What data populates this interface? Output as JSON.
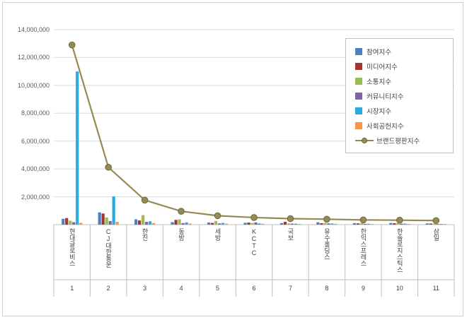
{
  "chart_data": {
    "type": "bar",
    "subtype": "grouped-bars-with-line-overlay",
    "title": "",
    "xlabel": "",
    "ylabel": "",
    "ylim": [
      0,
      14000000
    ],
    "ytick_interval": 2000000,
    "ytick_labels": [
      "2,000,000",
      "4,000,000",
      "6,000,000",
      "8,000,000",
      "10,000,000",
      "12,000,000",
      "14,000,000"
    ],
    "grid": true,
    "legend_position": "upper-right",
    "categories": [
      "현대글로비스",
      "CJ대한통운",
      "한진",
      "동방",
      "세방",
      "KCTC",
      "국보",
      "유수홀딩스",
      "한익스프레스",
      "한솔로지스틱스",
      "삼일"
    ],
    "rank_labels": [
      "1",
      "2",
      "3",
      "4",
      "5",
      "6",
      "7",
      "8",
      "9",
      "10",
      "11"
    ],
    "bar_series": [
      {
        "name": "참여지수",
        "color": "#4F81BD",
        "values": [
          420000,
          880000,
          380000,
          180000,
          150000,
          130000,
          110000,
          170000,
          110000,
          120000,
          90000
        ]
      },
      {
        "name": "미디어지수",
        "color": "#A5342F",
        "values": [
          470000,
          800000,
          300000,
          340000,
          120000,
          150000,
          200000,
          100000,
          90000,
          100000,
          80000
        ]
      },
      {
        "name": "소통지수",
        "color": "#9BBB59",
        "values": [
          280000,
          520000,
          680000,
          380000,
          260000,
          120000,
          90000,
          120000,
          100000,
          110000,
          70000
        ]
      },
      {
        "name": "커뮤니티지수",
        "color": "#8064A2",
        "values": [
          180000,
          260000,
          200000,
          110000,
          90000,
          160000,
          70000,
          90000,
          60000,
          70000,
          50000
        ]
      },
      {
        "name": "시장지수",
        "color": "#29ABE2",
        "values": [
          11000000,
          2020000,
          240000,
          160000,
          120000,
          90000,
          70000,
          80000,
          60000,
          70000,
          50000
        ]
      },
      {
        "name": "사회공헌지수",
        "color": "#F79646",
        "values": [
          130000,
          200000,
          110000,
          80000,
          70000,
          60000,
          50000,
          60000,
          40000,
          50000,
          40000
        ]
      }
    ],
    "line_series": {
      "name": "브랜드평판지수",
      "color": "#948A54",
      "marker_edge_color": "#6F6840",
      "values": [
        12900000,
        4120000,
        1760000,
        960000,
        640000,
        510000,
        430000,
        390000,
        340000,
        320000,
        290000
      ]
    },
    "colors": {
      "gridline": "#D9D9D9",
      "axis": "#BFBFBF",
      "tick_text": "#595959",
      "label_text": "#404040",
      "background": "#FFFFFF"
    }
  }
}
